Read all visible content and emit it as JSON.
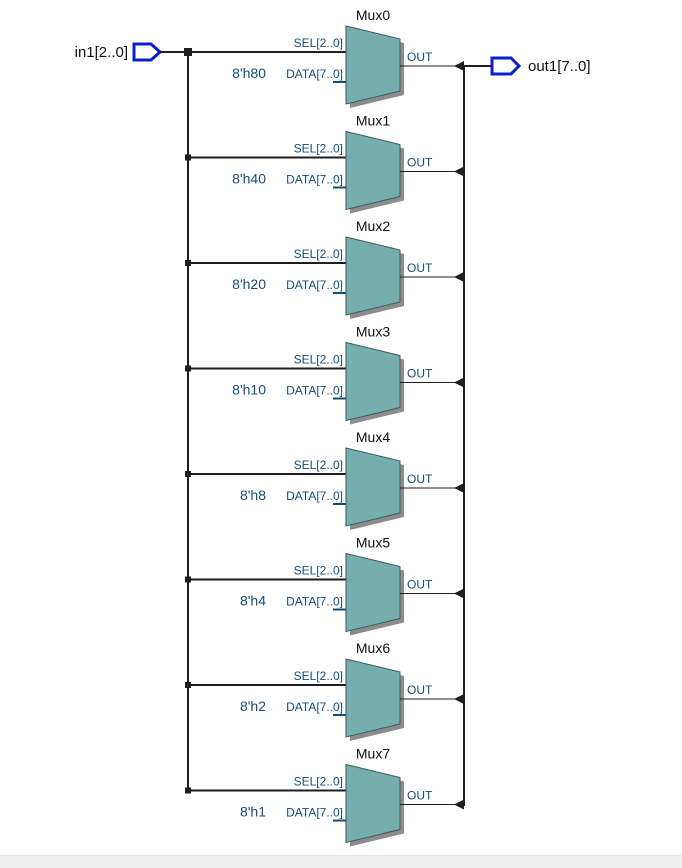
{
  "input_port": {
    "label": "in1[2..0]"
  },
  "output_port": {
    "label": "out1[7..0]"
  },
  "muxes": [
    {
      "name": "Mux0",
      "sel_label": "SEL[2..0]",
      "data_label": "DATA[7..0]",
      "const": "8'h80",
      "out_label": "OUT"
    },
    {
      "name": "Mux1",
      "sel_label": "SEL[2..0]",
      "data_label": "DATA[7..0]",
      "const": "8'h40",
      "out_label": "OUT"
    },
    {
      "name": "Mux2",
      "sel_label": "SEL[2..0]",
      "data_label": "DATA[7..0]",
      "const": "8'h20",
      "out_label": "OUT"
    },
    {
      "name": "Mux3",
      "sel_label": "SEL[2..0]",
      "data_label": "DATA[7..0]",
      "const": "8'h10",
      "out_label": "OUT"
    },
    {
      "name": "Mux4",
      "sel_label": "SEL[2..0]",
      "data_label": "DATA[7..0]",
      "const": "8'h8",
      "out_label": "OUT"
    },
    {
      "name": "Mux5",
      "sel_label": "SEL[2..0]",
      "data_label": "DATA[7..0]",
      "const": "8'h4",
      "out_label": "OUT"
    },
    {
      "name": "Mux6",
      "sel_label": "SEL[2..0]",
      "data_label": "DATA[7..0]",
      "const": "8'h2",
      "out_label": "OUT"
    },
    {
      "name": "Mux7",
      "sel_label": "SEL[2..0]",
      "data_label": "DATA[7..0]",
      "const": "8'h1",
      "out_label": "OUT"
    }
  ],
  "colors": {
    "mux_fill": "#76aeae",
    "pin_text": "#174e74",
    "io_port_stroke": "#0a1fcf",
    "wire": "#1e1e1e"
  }
}
